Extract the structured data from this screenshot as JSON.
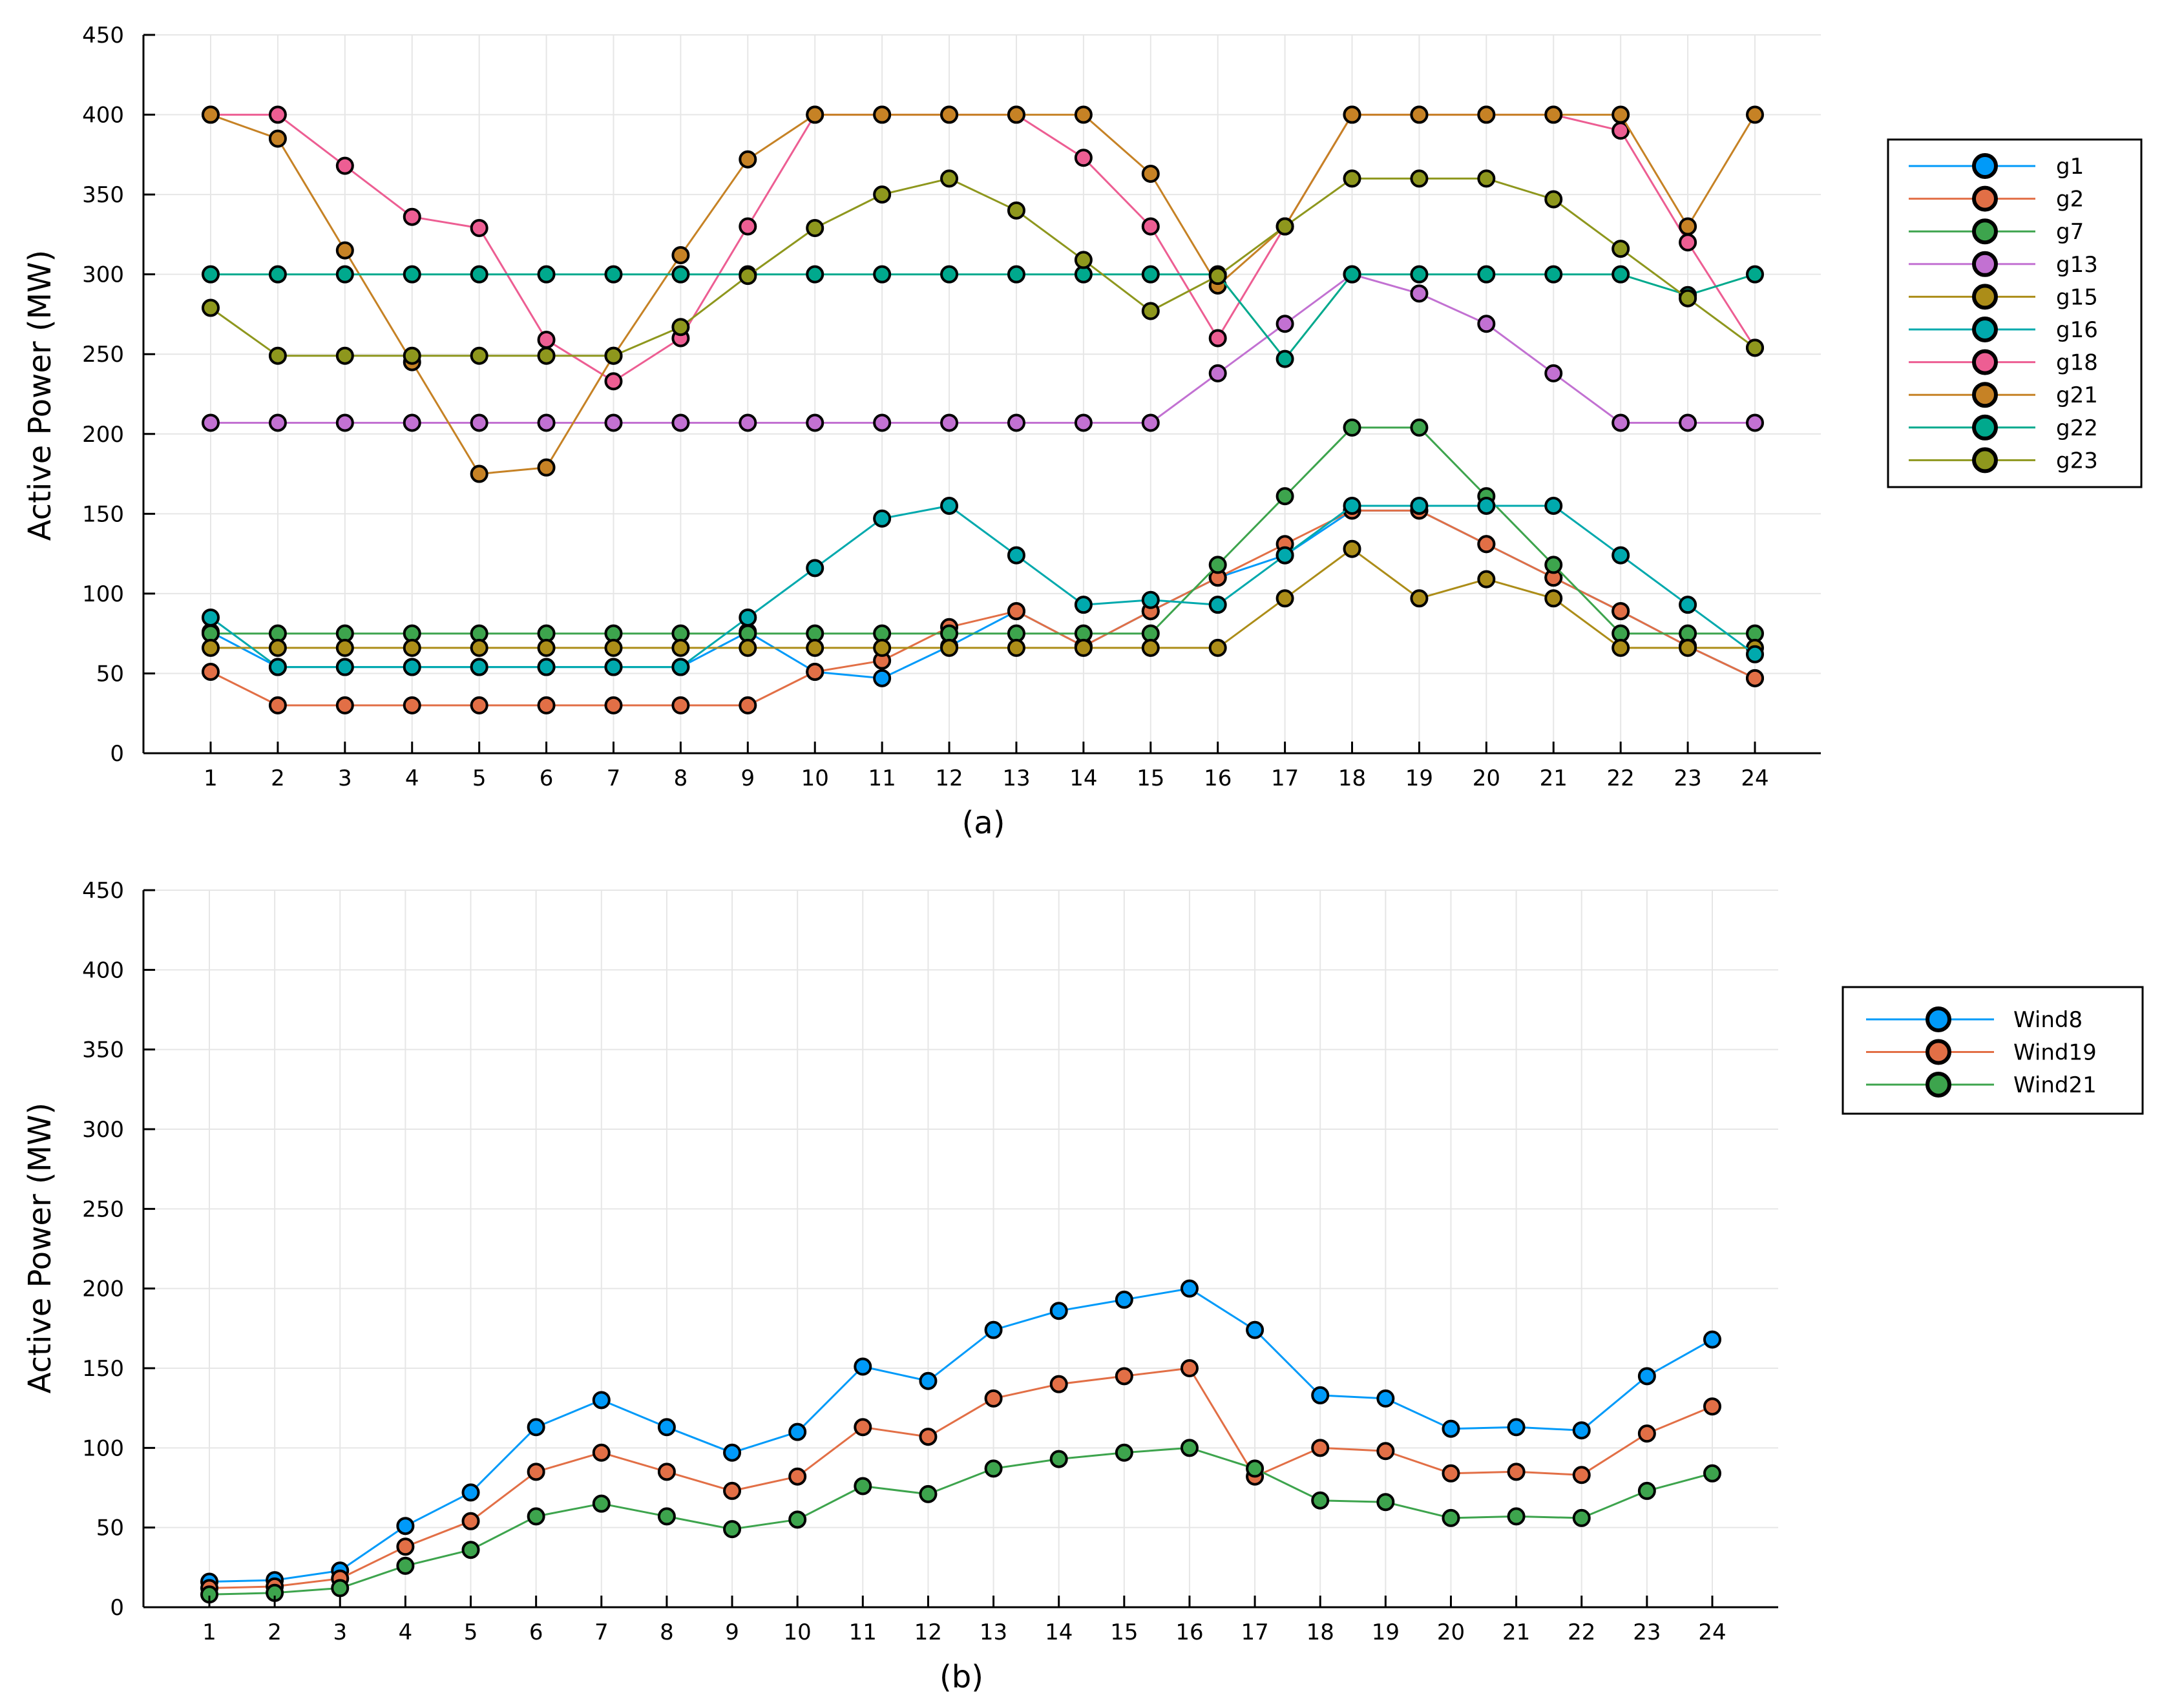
{
  "chart_data": [
    {
      "type": "line",
      "caption": "(a)",
      "title": "",
      "xlabel": "",
      "ylabel": "Active Power (MW)",
      "ylim": [
        0,
        450
      ],
      "yticks": [
        "0",
        "50",
        "100",
        "150",
        "200",
        "250",
        "300",
        "350",
        "400",
        "450"
      ],
      "categories": [
        "1",
        "2",
        "3",
        "4",
        "5",
        "6",
        "7",
        "8",
        "9",
        "10",
        "11",
        "12",
        "13",
        "14",
        "15",
        "16",
        "17",
        "18",
        "19",
        "20",
        "21",
        "22",
        "23",
        "24"
      ],
      "grid": true,
      "legend_position": "right",
      "series": [
        {
          "name": "g1",
          "color": "#009af9",
          "values": [
            76,
            54,
            54,
            54,
            54,
            54,
            54,
            54,
            76,
            51,
            47,
            67,
            89,
            67,
            89,
            110,
            124,
            152,
            152,
            131,
            110,
            89,
            67,
            47
          ]
        },
        {
          "name": "g2",
          "color": "#e26f46",
          "values": [
            51,
            30,
            30,
            30,
            30,
            30,
            30,
            30,
            30,
            51,
            58,
            79,
            89,
            67,
            89,
            110,
            131,
            152,
            152,
            131,
            110,
            89,
            67,
            47
          ]
        },
        {
          "name": "g7",
          "color": "#3da44d",
          "values": [
            75,
            75,
            75,
            75,
            75,
            75,
            75,
            75,
            75,
            75,
            75,
            75,
            75,
            75,
            75,
            118,
            161,
            204,
            204,
            161,
            118,
            75,
            75,
            75
          ]
        },
        {
          "name": "g13",
          "color": "#c271d2",
          "values": [
            207,
            207,
            207,
            207,
            207,
            207,
            207,
            207,
            207,
            207,
            207,
            207,
            207,
            207,
            207,
            238,
            269,
            300,
            288,
            269,
            238,
            207,
            207,
            207
          ]
        },
        {
          "name": "g15",
          "color": "#ac8d18",
          "values": [
            66,
            66,
            66,
            66,
            66,
            66,
            66,
            66,
            66,
            66,
            66,
            66,
            66,
            66,
            66,
            66,
            97,
            128,
            97,
            109,
            97,
            66,
            66,
            66
          ]
        },
        {
          "name": "g16",
          "color": "#00a9ad",
          "values": [
            85,
            54,
            54,
            54,
            54,
            54,
            54,
            54,
            85,
            116,
            147,
            155,
            124,
            93,
            96,
            93,
            124,
            155,
            155,
            155,
            155,
            124,
            93,
            62
          ]
        },
        {
          "name": "g18",
          "color": "#ed5e93",
          "values": [
            400,
            400,
            368,
            336,
            329,
            259,
            233,
            260,
            330,
            400,
            400,
            400,
            400,
            373,
            330,
            260,
            330,
            400,
            400,
            400,
            400,
            390,
            320,
            254
          ]
        },
        {
          "name": "g21",
          "color": "#c68225",
          "values": [
            400,
            385,
            315,
            245,
            175,
            179,
            249,
            312,
            372,
            400,
            400,
            400,
            400,
            400,
            363,
            293,
            330,
            400,
            400,
            400,
            400,
            400,
            330,
            400
          ]
        },
        {
          "name": "g22",
          "color": "#00a98d",
          "values": [
            300,
            300,
            300,
            300,
            300,
            300,
            300,
            300,
            300,
            300,
            300,
            300,
            300,
            300,
            300,
            300,
            247,
            300,
            300,
            300,
            300,
            300,
            287,
            300
          ]
        },
        {
          "name": "g23",
          "color": "#8e971d",
          "values": [
            279,
            249,
            249,
            249,
            249,
            249,
            249,
            267,
            299,
            329,
            350,
            360,
            340,
            309,
            277,
            299,
            330,
            360,
            360,
            360,
            347,
            316,
            285,
            254
          ]
        }
      ]
    },
    {
      "type": "line",
      "caption": "(b)",
      "title": "",
      "xlabel": "",
      "ylabel": "Active Power (MW)",
      "ylim": [
        0,
        450
      ],
      "yticks": [
        "0",
        "50",
        "100",
        "150",
        "200",
        "250",
        "300",
        "350",
        "400",
        "450"
      ],
      "categories": [
        "1",
        "2",
        "3",
        "4",
        "5",
        "6",
        "7",
        "8",
        "9",
        "10",
        "11",
        "12",
        "13",
        "14",
        "15",
        "16",
        "17",
        "18",
        "19",
        "20",
        "21",
        "22",
        "23",
        "24"
      ],
      "grid": true,
      "legend_position": "right",
      "series": [
        {
          "name": "Wind8",
          "color": "#009af9",
          "values": [
            16,
            17,
            23,
            51,
            72,
            113,
            130,
            113,
            97,
            110,
            151,
            142,
            174,
            186,
            193,
            200,
            174,
            133,
            131,
            112,
            113,
            111,
            145,
            168
          ]
        },
        {
          "name": "Wind19",
          "color": "#e26f46",
          "values": [
            12,
            13,
            18,
            38,
            54,
            85,
            97,
            85,
            73,
            82,
            113,
            107,
            131,
            140,
            145,
            150,
            82,
            100,
            98,
            84,
            85,
            83,
            109,
            126
          ]
        },
        {
          "name": "Wind21",
          "color": "#3da44d",
          "values": [
            8,
            9,
            12,
            26,
            36,
            57,
            65,
            57,
            49,
            55,
            76,
            71,
            87,
            93,
            97,
            100,
            87,
            67,
            66,
            56,
            57,
            56,
            73,
            84
          ]
        }
      ]
    }
  ]
}
